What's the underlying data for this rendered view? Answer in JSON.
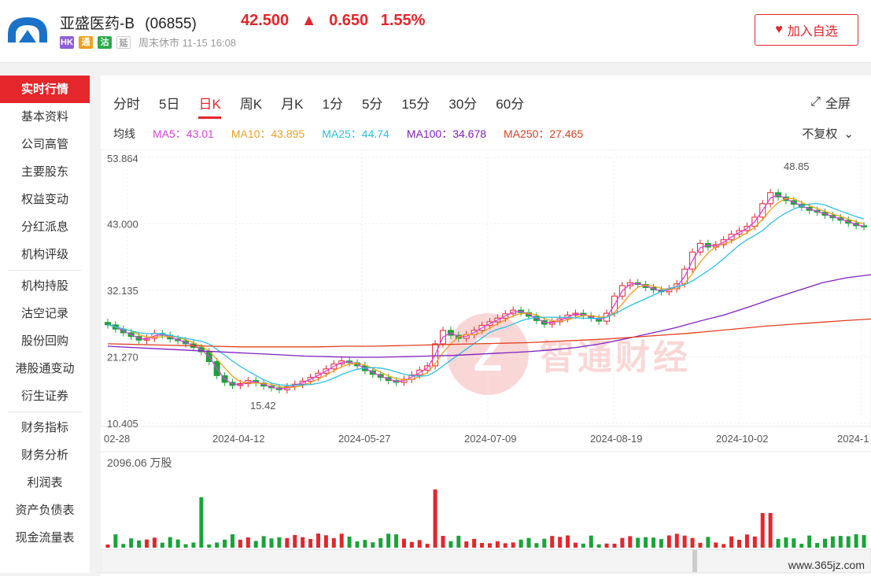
{
  "header": {
    "name": "亚盛医药-B",
    "code": "(06855)",
    "price": "42.500",
    "change": "0.650",
    "change_pct": "1.55%",
    "tags": [
      {
        "label": "HK",
        "color": "#8e5fd8"
      },
      {
        "label": "通",
        "color": "#f0a020"
      },
      {
        "label": "沽",
        "color": "#2ca94a"
      },
      {
        "label": "延",
        "color": "#999999"
      }
    ],
    "status": "周末休市 11-15 16:08",
    "fav_label": "加入自选",
    "up_color": "#e5262a"
  },
  "sidebar": {
    "items": [
      "实时行情",
      "基本资料",
      "公司高管",
      "主要股东",
      "权益变动",
      "分红派息",
      "机构评级",
      "机构持股",
      "沽空记录",
      "股份回购",
      "港股通变动",
      "衍生证券",
      "财务指标",
      "财务分析",
      "利润表",
      "资产负债表",
      "现金流量表"
    ]
  },
  "tabs": [
    "分时",
    "5日",
    "日K",
    "周K",
    "月K",
    "1分",
    "5分",
    "15分",
    "30分",
    "60分"
  ],
  "active_tab": "日K",
  "fullscreen_label": "全屏",
  "ma": {
    "label": "均线",
    "items": [
      {
        "text": "MA5：43.01",
        "color": "#e040e0"
      },
      {
        "text": "MA10：43.895",
        "color": "#f0a020"
      },
      {
        "text": "MA25：44.74",
        "color": "#2cc0e0"
      },
      {
        "text": "MA100：34.678",
        "color": "#8020c0"
      },
      {
        "text": "MA250：27.465",
        "color": "#e04020"
      }
    ]
  },
  "fuquan_label": "不复权",
  "volume_label": "2096.06 万股",
  "site_mark": "www.365jz.com",
  "watermark": {
    "logo": "Z",
    "text": "智通财经"
  },
  "chart_data": {
    "type": "candlestick",
    "y_ticks": [
      "53.864",
      "43.000",
      "32.135",
      "21.270",
      "10.405"
    ],
    "ylim": [
      10.405,
      53.864
    ],
    "x_ticks": [
      "02-28",
      "2024-04-12",
      "2024-05-27",
      "2024-07-09",
      "2024-08-19",
      "2024-10-02",
      "2024-1"
    ],
    "annotations": [
      {
        "text": "48.85",
        "type": "high"
      },
      {
        "text": "15.42",
        "type": "low"
      }
    ],
    "close_series": [
      26.5,
      25.8,
      25.2,
      24.6,
      24.0,
      24.3,
      25.1,
      24.8,
      24.2,
      23.9,
      23.4,
      22.8,
      22.1,
      20.5,
      18.2,
      17.1,
      16.6,
      16.9,
      17.4,
      17.0,
      16.5,
      16.2,
      15.9,
      16.4,
      16.8,
      17.3,
      17.9,
      18.6,
      19.3,
      20.1,
      20.6,
      20.3,
      19.8,
      19.0,
      18.4,
      17.9,
      17.4,
      17.1,
      17.6,
      18.3,
      19.1,
      19.8,
      23.4,
      25.6,
      24.8,
      24.3,
      24.9,
      25.6,
      26.4,
      27.0,
      27.6,
      28.3,
      28.9,
      28.5,
      27.9,
      27.2,
      26.6,
      27.0,
      27.5,
      28.1,
      28.4,
      28.0,
      27.6,
      27.1,
      28.4,
      31.2,
      32.9,
      33.4,
      33.1,
      32.6,
      32.2,
      31.9,
      32.4,
      33.2,
      35.6,
      38.4,
      39.8,
      39.2,
      39.6,
      40.4,
      41.3,
      41.9,
      42.6,
      44.1,
      46.3,
      48.1,
      47.4,
      46.8,
      46.2,
      45.7,
      45.2,
      44.9,
      44.4,
      44.0,
      43.6,
      43.1,
      42.7,
      42.5
    ],
    "ma100_series": [
      23.0,
      22.8,
      22.6,
      22.4,
      22.2,
      22.0,
      21.8,
      21.6,
      21.4,
      21.3,
      21.2,
      21.2,
      21.3,
      21.4,
      21.5,
      21.7,
      21.9,
      22.1,
      22.4,
      22.8,
      23.4,
      24.2,
      25.1,
      26.0,
      27.1,
      28.1,
      29.4,
      30.8,
      32.1,
      33.4,
      34.2,
      34.7
    ],
    "ma250_series": [
      23.4,
      23.3,
      23.2,
      23.1,
      23.0,
      22.9,
      22.9,
      22.9,
      22.9,
      23.0,
      23.0,
      23.1,
      23.2,
      23.3,
      23.4,
      23.5,
      23.6,
      23.8,
      24.0,
      24.2,
      24.5,
      24.8,
      25.1,
      25.5,
      25.9,
      26.3,
      26.6,
      26.9,
      27.2,
      27.465
    ],
    "volume_max": 2096.06,
    "volume_unit": "万股"
  }
}
